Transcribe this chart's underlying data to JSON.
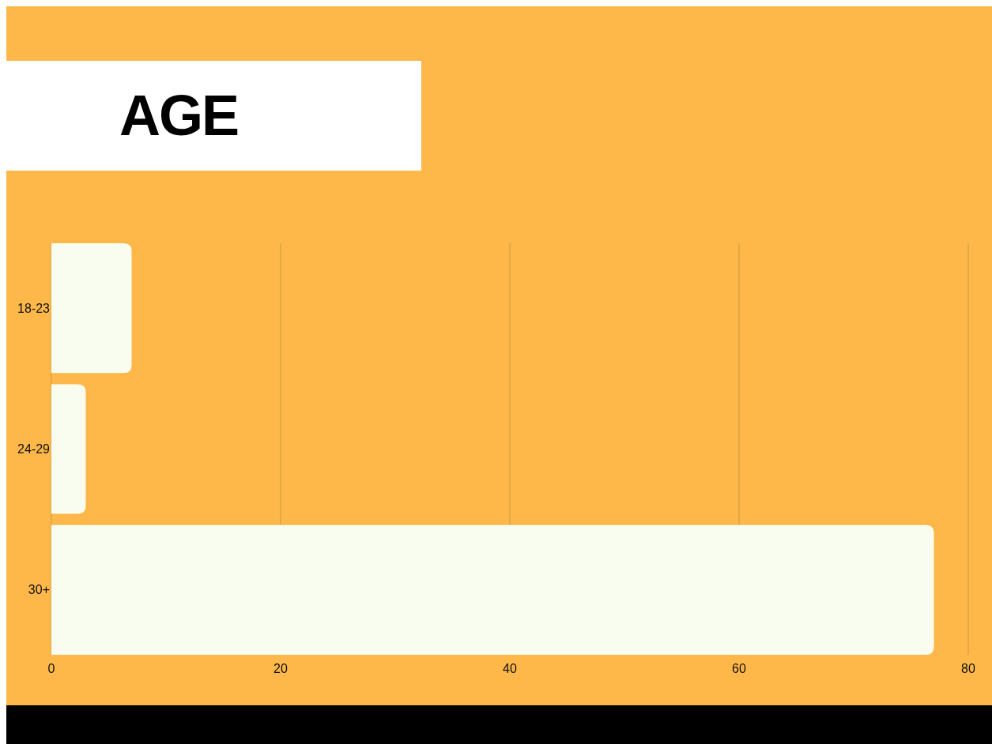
{
  "chart_data": {
    "type": "bar",
    "orientation": "horizontal",
    "title": "AGE",
    "categories": [
      "18-23",
      "24-29",
      "30+"
    ],
    "values": [
      7,
      3,
      77
    ],
    "color": "#f9fdf0",
    "xlim": [
      0,
      80
    ],
    "xticks": [
      0,
      20,
      40,
      60,
      80
    ],
    "grid": "x"
  }
}
